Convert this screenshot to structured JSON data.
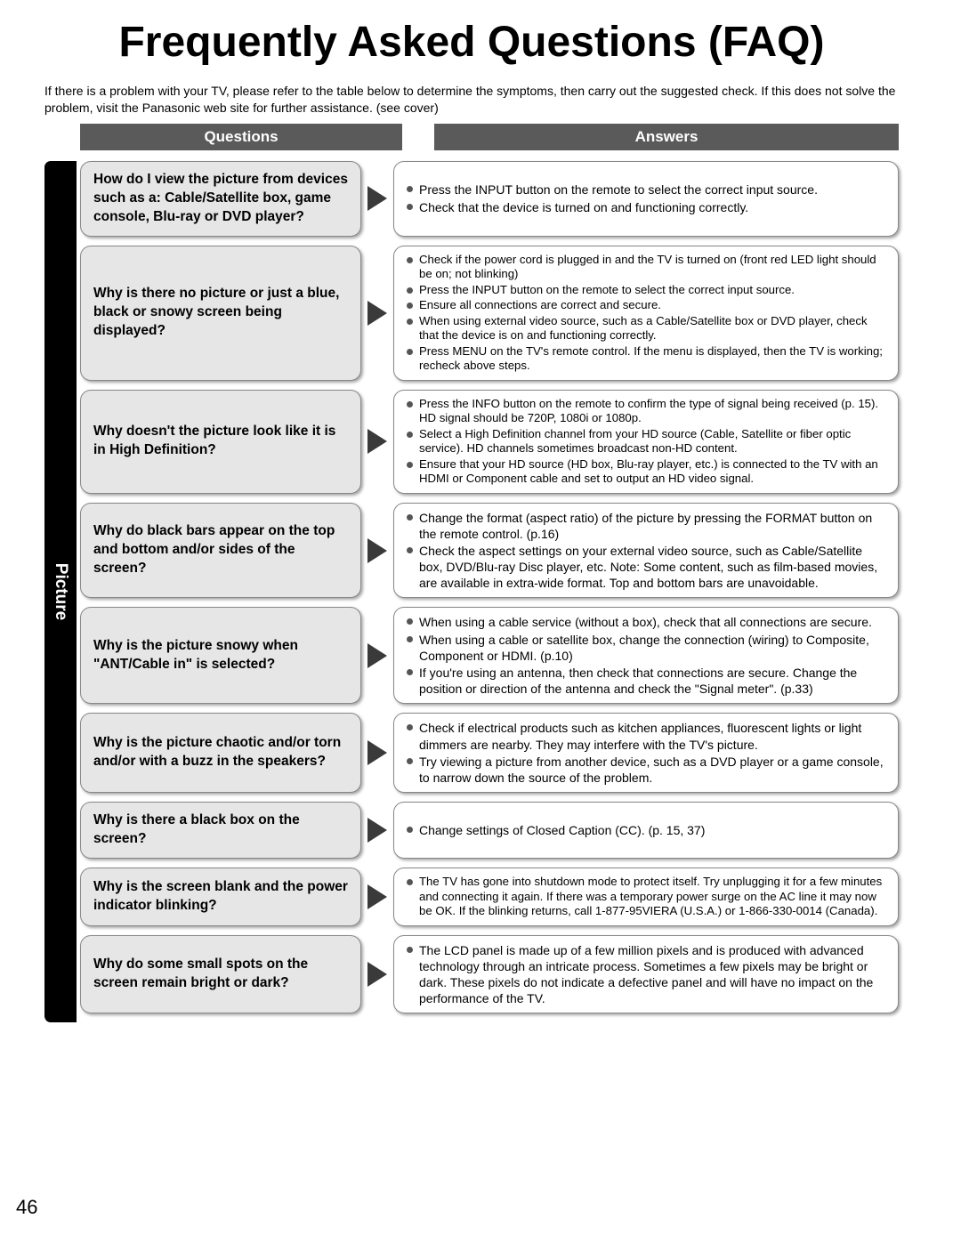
{
  "title": "Frequently Asked Questions (FAQ)",
  "intro": "If there is a problem with your TV, please refer to the table below to determine the symptoms, then carry out the suggested check. If this does not solve the problem, visit the Panasonic web site for further assistance. (see cover)",
  "page_number": "46",
  "headers": {
    "questions": "Questions",
    "answers": "Answers"
  },
  "side_tab": "Picture",
  "colors": {
    "header_bg": "#5a5a5a",
    "qbox_bg": "#e6e6e6",
    "border": "#888888",
    "arrow": "#3a3a3a",
    "bullet": "#555555",
    "side_tab_bg": "#000000"
  },
  "rows": [
    {
      "q": "How do I view the picture from devices such as a: Cable/Satellite box,  game console, Blu-ray or DVD player?",
      "a": [
        "Press the INPUT button on the remote to select the correct input source.",
        "Check that the device is turned on and functioning correctly."
      ]
    },
    {
      "q": "Why is there no picture or just a blue, black or snowy screen being displayed?",
      "a": [
        "Check if the power cord is plugged in and the TV is turned on (front red LED light should be on; not blinking)",
        "Press the INPUT button on the remote to select the correct input source.",
        "Ensure all connections are correct and secure.",
        "When using external video source, such as a Cable/Satellite box or DVD player, check that the device is on and functioning correctly.",
        "Press MENU on the TV's remote control. If the menu is displayed, then the TV is working; recheck above steps."
      ],
      "tight": true
    },
    {
      "q": "Why doesn't the picture look like it is in High Definition?",
      "a": [
        "Press the INFO button on the remote to confirm the type of signal being received (p. 15). HD signal should be 720P, 1080i or 1080p.",
        "Select a High Definition channel from your HD source (Cable, Satellite or fiber optic service). HD channels sometimes broadcast non-HD content.",
        "Ensure that your HD source (HD box, Blu-ray player, etc.) is connected to the TV with an HDMI or Component cable and set to output an HD video signal."
      ],
      "tight": true
    },
    {
      "q": "Why do black bars appear on the top and bottom and/or sides of the screen?",
      "a": [
        "Change the format (aspect ratio) of the picture by pressing the FORMAT button on the remote control. (p.16)",
        "Check the aspect settings on your external video source, such as Cable/Satellite box, DVD/Blu-ray Disc player, etc. Note: Some content, such as film-based movies, are available in extra-wide format. Top and bottom bars are unavoidable."
      ]
    },
    {
      "q": "Why is the picture snowy when \"ANT/Cable in\" is selected?",
      "a": [
        "When using a cable service (without a box), check that all connections are secure.",
        "When using a cable or satellite box, change the connection (wiring) to Composite, Component or HDMI. (p.10)",
        "If you're using an antenna, then check that connections are secure. Change the position or direction of the antenna and check the \"Signal meter\". (p.33)"
      ]
    },
    {
      "q": "Why is the picture chaotic and/or torn and/or with a buzz in the speakers?",
      "a": [
        "Check if electrical products such as kitchen appliances, fluorescent lights or light dimmers are nearby. They may interfere with the TV's picture.",
        "Try viewing a picture from another device, such as a DVD player or a game console, to narrow down the source of the problem."
      ]
    },
    {
      "q": "Why is there a black box on the screen?",
      "a": [
        "Change settings of Closed Caption (CC). (p. 15, 37)"
      ]
    },
    {
      "q": "Why is the screen blank and the power indicator blinking?",
      "a": [
        "The TV has gone into shutdown mode to protect itself. Try unplugging it for a few minutes and connecting it again. If there was a temporary power surge on the AC line it may now be OK. If the blinking returns, call 1-877-95VIERA (U.S.A.) or 1-866-330-0014 (Canada)."
      ],
      "tight": true
    },
    {
      "q": "Why do some small spots on the screen remain bright or dark?",
      "a": [
        "The LCD panel is made up of a few million pixels and is produced with advanced technology through an intricate process. Sometimes a few pixels may be bright or dark. These pixels do not indicate a defective panel and will have no impact on the performance of the TV."
      ]
    }
  ]
}
